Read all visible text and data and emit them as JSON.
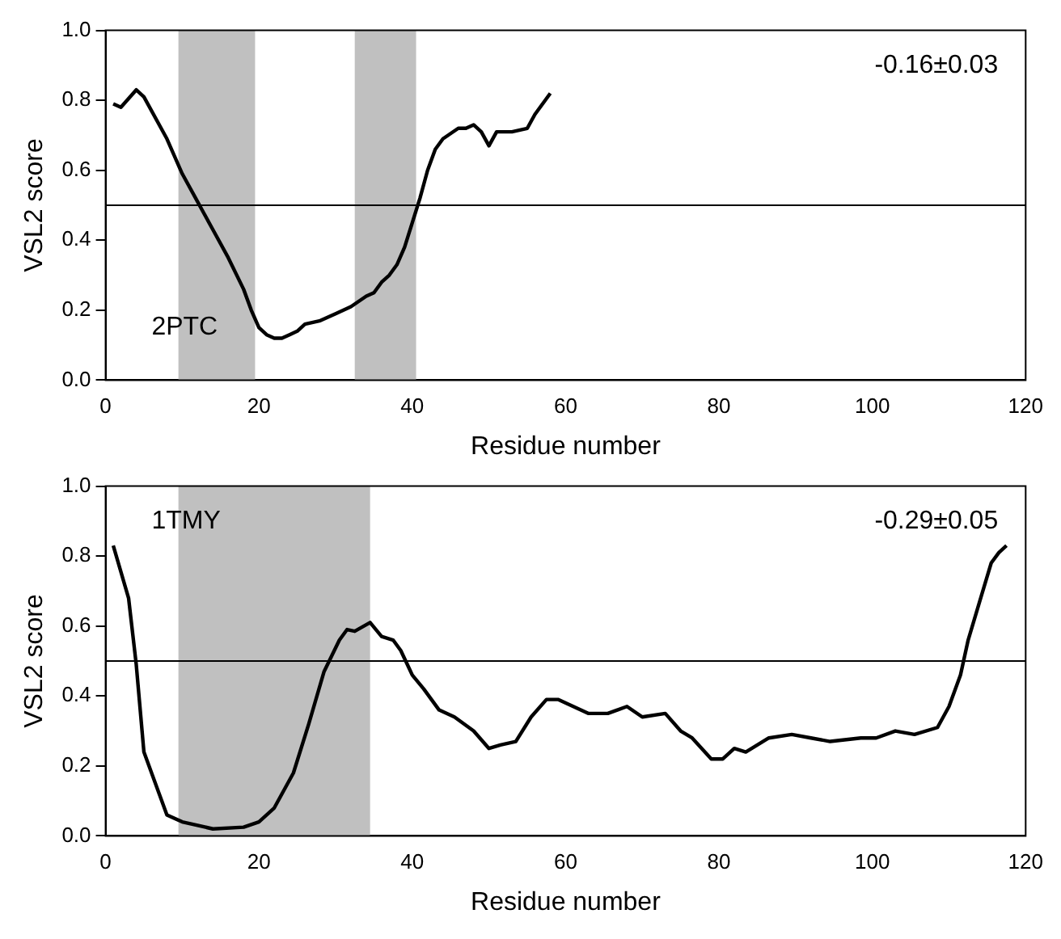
{
  "chart_data": [
    {
      "type": "line",
      "xlabel": "Residue number",
      "ylabel": "VSL2 score",
      "annotations": [
        "-0.16±0.03",
        "2PTC"
      ],
      "xlim": [
        0,
        120
      ],
      "xticks": [
        0,
        20,
        40,
        60,
        80,
        100,
        120
      ],
      "ylim": [
        0,
        1
      ],
      "yticks": [
        {
          "value": 0,
          "label": "0.0"
        },
        {
          "value": 0.2,
          "label": "0.2"
        },
        {
          "value": 0.4,
          "label": "0.4"
        },
        {
          "value": 0.6,
          "label": "0.6"
        },
        {
          "value": 0.8,
          "label": "0.8"
        },
        {
          "value": 1,
          "label": "1.0"
        }
      ],
      "grid": false,
      "legend": false,
      "marker": "none",
      "line_style": "solid",
      "ref_lines": [
        {
          "axis": "y",
          "value": 0.5,
          "color": "#000000"
        }
      ],
      "bands": [
        {
          "axis": "x",
          "from": 9.5,
          "to": 19.5,
          "color": "#c0c0c0"
        },
        {
          "axis": "x",
          "from": 32.5,
          "to": 40.5,
          "color": "#c0c0c0"
        }
      ],
      "series": [
        {
          "color": "#000000",
          "x": [
            1,
            2,
            4,
            5,
            8,
            10,
            12,
            14,
            16,
            18,
            19,
            20,
            21,
            22,
            23,
            24,
            25,
            26,
            28,
            30,
            32,
            34,
            35,
            36,
            37,
            38,
            39,
            40,
            41,
            42,
            43,
            44,
            46,
            47,
            48,
            49,
            50,
            51,
            53,
            55,
            56,
            57,
            58
          ],
          "values": [
            0.79,
            0.78,
            0.83,
            0.81,
            0.69,
            0.59,
            0.51,
            0.43,
            0.35,
            0.26,
            0.2,
            0.15,
            0.13,
            0.12,
            0.12,
            0.13,
            0.14,
            0.16,
            0.17,
            0.19,
            0.21,
            0.24,
            0.25,
            0.28,
            0.3,
            0.33,
            0.38,
            0.45,
            0.52,
            0.6,
            0.66,
            0.69,
            0.72,
            0.72,
            0.73,
            0.71,
            0.67,
            0.71,
            0.71,
            0.72,
            0.76,
            0.79,
            0.82
          ]
        }
      ]
    },
    {
      "type": "line",
      "xlabel": "Residue number",
      "ylabel": "VSL2 score",
      "annotations": [
        "-0.29±0.05",
        "1TMY"
      ],
      "xlim": [
        0,
        120
      ],
      "xticks": [
        0,
        20,
        40,
        60,
        80,
        100,
        120
      ],
      "ylim": [
        0,
        1
      ],
      "yticks": [
        {
          "value": 0,
          "label": "0.0"
        },
        {
          "value": 0.2,
          "label": "0.2"
        },
        {
          "value": 0.4,
          "label": "0.4"
        },
        {
          "value": 0.6,
          "label": "0.6"
        },
        {
          "value": 0.8,
          "label": "0.8"
        },
        {
          "value": 1,
          "label": "1.0"
        }
      ],
      "grid": false,
      "legend": false,
      "marker": "none",
      "line_style": "solid",
      "ref_lines": [
        {
          "axis": "y",
          "value": 0.5,
          "color": "#000000"
        }
      ],
      "bands": [
        {
          "axis": "x",
          "from": 9.5,
          "to": 34.5,
          "color": "#c0c0c0"
        }
      ],
      "series": [
        {
          "color": "#000000",
          "x": [
            1,
            3,
            4,
            5,
            7,
            8,
            10,
            14,
            18,
            20,
            22,
            24.5,
            26.5,
            28.5,
            30.5,
            31.5,
            32.5,
            34.5,
            36,
            37.5,
            38.5,
            40,
            41.5,
            43.5,
            45.5,
            48,
            50,
            51.5,
            53.5,
            55.5,
            57.5,
            59,
            61,
            63,
            65.5,
            68,
            70,
            73,
            75,
            76.5,
            79,
            80.5,
            82,
            83.5,
            86.5,
            89.5,
            92,
            94.5,
            98.5,
            100.5,
            103,
            105.5,
            108.5,
            110,
            111.5,
            112.5,
            114,
            115.5,
            116.5,
            117.5
          ],
          "values": [
            0.83,
            0.68,
            0.49,
            0.24,
            0.12,
            0.06,
            0.04,
            0.02,
            0.025,
            0.04,
            0.08,
            0.18,
            0.32,
            0.47,
            0.56,
            0.59,
            0.585,
            0.61,
            0.57,
            0.56,
            0.53,
            0.46,
            0.42,
            0.36,
            0.34,
            0.3,
            0.25,
            0.26,
            0.27,
            0.34,
            0.39,
            0.39,
            0.37,
            0.35,
            0.35,
            0.37,
            0.34,
            0.35,
            0.3,
            0.28,
            0.22,
            0.22,
            0.25,
            0.24,
            0.28,
            0.29,
            0.28,
            0.27,
            0.28,
            0.28,
            0.3,
            0.29,
            0.31,
            0.37,
            0.46,
            0.56,
            0.67,
            0.78,
            0.81,
            0.83
          ]
        }
      ]
    }
  ]
}
